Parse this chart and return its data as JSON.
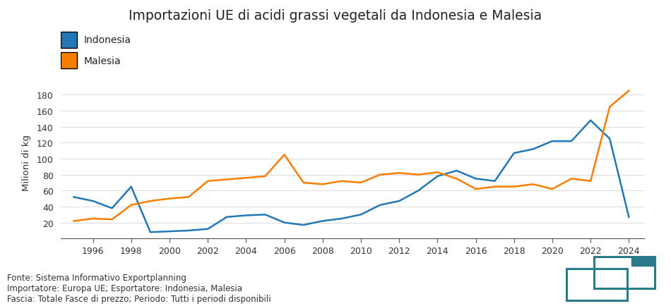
{
  "title": "Importazioni UE di acidi grassi vegetali da Indonesia e Malesia",
  "ylabel": "Milioni di kg",
  "footer_lines": [
    "Fonte: Sistema Informativo Exportplanning",
    "Importatore: Europa UE; Esportatore: Indonesia, Malesia",
    "Fascia: Totale Fasce di prezzo; Periodo: Tutti i periodi disponibili"
  ],
  "indonesia_color": "#2278b5",
  "malaysia_color": "#f77f00",
  "logo_color": "#2a7a8c",
  "background_color": "#ffffff",
  "years": [
    1995,
    1996,
    1997,
    1998,
    1999,
    2000,
    2001,
    2002,
    2003,
    2004,
    2005,
    2006,
    2007,
    2008,
    2009,
    2010,
    2011,
    2012,
    2013,
    2014,
    2015,
    2016,
    2017,
    2018,
    2019,
    2020,
    2021,
    2022,
    2023,
    2024
  ],
  "indonesia": [
    52,
    47,
    38,
    65,
    8,
    9,
    10,
    12,
    27,
    29,
    30,
    20,
    17,
    22,
    25,
    30,
    42,
    47,
    60,
    78,
    85,
    75,
    72,
    107,
    112,
    122,
    122,
    148,
    125,
    27
  ],
  "malaysia": [
    22,
    25,
    24,
    42,
    47,
    50,
    52,
    72,
    74,
    76,
    78,
    105,
    70,
    68,
    72,
    70,
    80,
    82,
    80,
    83,
    75,
    62,
    65,
    65,
    68,
    62,
    75,
    72,
    165,
    185
  ],
  "ytick_values": [
    20,
    40,
    60,
    80,
    100,
    120,
    140,
    160,
    180
  ],
  "ytick_labels": [
    "20",
    "40",
    "60",
    "80",
    "100",
    "120",
    "140",
    "160",
    "180"
  ],
  "xtick_labels": [
    "1996",
    "1998",
    "2000",
    "2002",
    "2004",
    "2006",
    "2008",
    "2010",
    "2012",
    "2014",
    "2016",
    "2018",
    "2020",
    "2022",
    "2024"
  ],
  "xtick_years": [
    1996,
    1998,
    2000,
    2002,
    2004,
    2006,
    2008,
    2010,
    2012,
    2014,
    2016,
    2018,
    2020,
    2022,
    2024
  ],
  "xlim": [
    1994.3,
    2024.8
  ],
  "ylim": [
    0,
    192
  ]
}
